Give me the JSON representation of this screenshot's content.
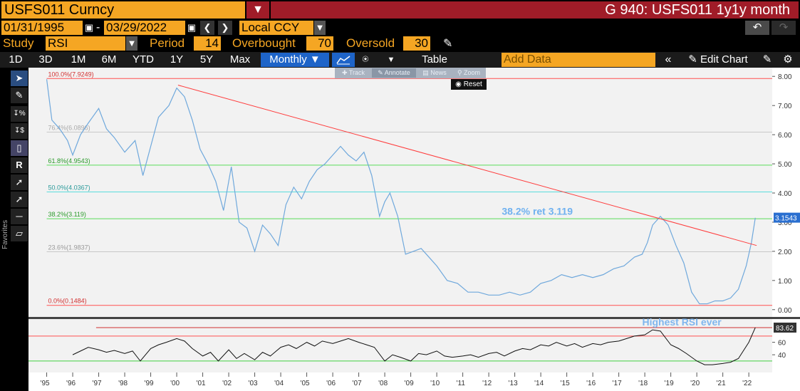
{
  "title_bar": {
    "ticker": "USFS011 Curncy",
    "menu_icon": "dropdown-icon",
    "function_title": "G 940: USFS011 1y1y month"
  },
  "range": {
    "start_date": "01/31/1995",
    "separator": "-",
    "end_date": "03/29/2022",
    "currency": "Local CCY"
  },
  "study": {
    "study_label": "Study",
    "study_value": "RSI",
    "period_label": "Period",
    "period_value": "14",
    "overbought_label": "Overbought",
    "overbought_value": "70",
    "oversold_label": "Oversold",
    "oversold_value": "30"
  },
  "timeframes": [
    "1D",
    "3D",
    "1M",
    "6M",
    "YTD",
    "1Y",
    "5Y",
    "Max"
  ],
  "frequency": "Monthly",
  "table_label": "Table",
  "add_data_placeholder": "Add Data",
  "edit_chart_label": "Edit Chart",
  "mini_toolbar": [
    "Track",
    "Annotate",
    "News",
    "Zoom"
  ],
  "reset_label": "Reset",
  "favorites_label": "Favorites",
  "colors": {
    "orange": "#f5a623",
    "title_red": "#a01c28",
    "price_line": "#6fa8dc",
    "trend_line": "#ff3c3c",
    "selected_blue": "#1e64c8"
  },
  "chart_data": {
    "type": "line",
    "x_ticks": [
      "'95",
      "'96",
      "'97",
      "'98",
      "'99",
      "'00",
      "'01",
      "'02",
      "'03",
      "'04",
      "'05",
      "'06",
      "'07",
      "'08",
      "'09",
      "'10",
      "'11",
      "'12",
      "'13",
      "'14",
      "'15",
      "'16",
      "'17",
      "'18",
      "'19",
      "'20",
      "'21",
      "'22"
    ],
    "price_panel": {
      "y_ticks": [
        "8.00",
        "7.00",
        "6.00",
        "5.00",
        "4.00",
        "3.00",
        "2.00",
        "1.00",
        "0.00"
      ],
      "ylim": [
        -0.25,
        8.25
      ],
      "last_value": "3.1543",
      "series": {
        "x": [
          1995.0,
          1995.2,
          1995.5,
          1995.8,
          1996.0,
          1996.3,
          1996.6,
          1997.0,
          1997.3,
          1997.6,
          1998.0,
          1998.4,
          1998.7,
          1999.0,
          1999.3,
          1999.7,
          2000.0,
          2000.3,
          2000.6,
          2000.9,
          2001.2,
          2001.5,
          2001.8,
          2002.1,
          2002.4,
          2002.7,
          2003.0,
          2003.3,
          2003.6,
          2003.9,
          2004.2,
          2004.5,
          2004.8,
          2005.1,
          2005.4,
          2005.7,
          2006.0,
          2006.3,
          2006.6,
          2006.9,
          2007.2,
          2007.5,
          2007.8,
          2008.0,
          2008.2,
          2008.5,
          2008.8,
          2009.1,
          2009.4,
          2009.7,
          2010.0,
          2010.4,
          2010.8,
          2011.2,
          2011.6,
          2012.0,
          2012.4,
          2012.8,
          2013.2,
          2013.6,
          2014.0,
          2014.4,
          2014.8,
          2015.2,
          2015.6,
          2016.0,
          2016.4,
          2016.8,
          2017.2,
          2017.6,
          2017.9,
          2018.1,
          2018.3,
          2018.6,
          2018.9,
          2019.2,
          2019.5,
          2019.8,
          2020.1,
          2020.4,
          2020.7,
          2021.0,
          2021.3,
          2021.6,
          2021.9,
          2022.1,
          2022.25
        ],
        "y": [
          7.9,
          6.5,
          6.2,
          5.8,
          5.3,
          6.0,
          6.4,
          6.9,
          6.2,
          5.9,
          5.4,
          5.8,
          4.6,
          5.6,
          6.6,
          7.0,
          7.6,
          7.3,
          6.5,
          5.5,
          5.0,
          4.4,
          3.4,
          4.9,
          3.0,
          2.8,
          2.0,
          2.9,
          2.6,
          2.2,
          3.6,
          4.2,
          3.8,
          4.4,
          4.8,
          5.0,
          5.3,
          5.6,
          5.3,
          5.1,
          5.4,
          4.6,
          3.2,
          3.7,
          4.0,
          3.2,
          1.9,
          2.0,
          2.1,
          1.8,
          1.5,
          1.0,
          0.9,
          0.6,
          0.6,
          0.5,
          0.5,
          0.6,
          0.5,
          0.6,
          0.9,
          1.0,
          1.2,
          1.1,
          1.2,
          1.1,
          1.2,
          1.4,
          1.5,
          1.8,
          1.9,
          2.3,
          2.9,
          3.2,
          2.9,
          2.2,
          1.6,
          0.6,
          0.2,
          0.2,
          0.3,
          0.3,
          0.4,
          0.7,
          1.5,
          2.3,
          3.15
        ]
      },
      "trendline": {
        "x": [
          2000.05,
          2022.3
        ],
        "y": [
          7.7,
          2.2
        ]
      },
      "fibonacci": [
        {
          "label": "100.0%(7.9249)",
          "value": 7.9249
        },
        {
          "label": "76.4%(6.0896)",
          "value": 6.0896
        },
        {
          "label": "61.8%(4.9543)",
          "value": 4.9543
        },
        {
          "label": "50.0%(4.0367)",
          "value": 4.0367
        },
        {
          "label": "38.2%(3.119)",
          "value": 3.119
        },
        {
          "label": "23.6%(1.9837)",
          "value": 1.9837
        },
        {
          "label": "0.0%(0.1484)",
          "value": 0.1484
        }
      ],
      "annotation": "38.2% ret 3.119"
    },
    "rsi_panel": {
      "y_ticks": [
        "60",
        "40"
      ],
      "ylim": [
        15,
        95
      ],
      "overbought": 70,
      "oversold": 30,
      "last_value": "83.62",
      "annotation": "Highest RSI ever",
      "series": {
        "x": [
          1996.0,
          1996.3,
          1996.6,
          1997.0,
          1997.3,
          1997.6,
          1998.0,
          1998.3,
          1998.6,
          1999.0,
          1999.3,
          1999.6,
          2000.0,
          2000.3,
          2000.6,
          2001.0,
          2001.3,
          2001.6,
          2002.0,
          2002.3,
          2002.6,
          2003.0,
          2003.3,
          2003.6,
          2004.0,
          2004.3,
          2004.6,
          2005.0,
          2005.3,
          2005.6,
          2006.0,
          2006.3,
          2006.6,
          2007.0,
          2007.3,
          2007.6,
          2008.0,
          2008.3,
          2008.6,
          2009.0,
          2009.3,
          2009.6,
          2010.0,
          2010.3,
          2010.6,
          2011.0,
          2011.3,
          2011.6,
          2012.0,
          2012.3,
          2012.6,
          2013.0,
          2013.3,
          2013.6,
          2014.0,
          2014.3,
          2014.6,
          2015.0,
          2015.3,
          2015.6,
          2016.0,
          2016.3,
          2016.6,
          2017.0,
          2017.3,
          2017.6,
          2018.0,
          2018.3,
          2018.6,
          2019.0,
          2019.3,
          2019.6,
          2020.0,
          2020.3,
          2020.6,
          2021.0,
          2021.3,
          2021.6,
          2022.0,
          2022.25
        ],
        "y": [
          40,
          46,
          52,
          48,
          44,
          47,
          42,
          46,
          30,
          50,
          56,
          60,
          66,
          62,
          50,
          38,
          44,
          30,
          48,
          34,
          42,
          32,
          44,
          38,
          52,
          56,
          50,
          60,
          54,
          62,
          58,
          62,
          66,
          60,
          56,
          52,
          30,
          40,
          36,
          30,
          42,
          40,
          46,
          38,
          36,
          38,
          40,
          36,
          42,
          44,
          38,
          46,
          50,
          48,
          56,
          54,
          60,
          54,
          58,
          52,
          58,
          56,
          60,
          62,
          66,
          70,
          72,
          80,
          78,
          56,
          50,
          42,
          30,
          24,
          24,
          26,
          28,
          34,
          60,
          83.6
        ]
      }
    }
  }
}
